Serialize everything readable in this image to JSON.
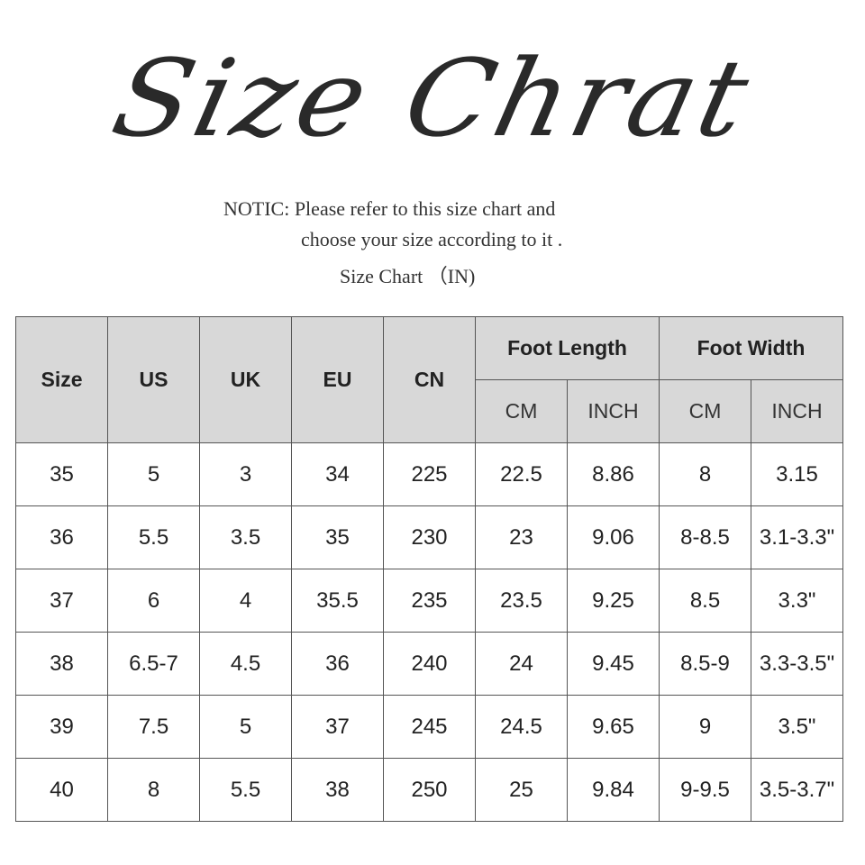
{
  "title": "Size Chrat",
  "notice": {
    "line1": "NOTIC: Please refer to this size chart and",
    "line2": "choose your size according to it .",
    "line3": "Size Chart （IN)"
  },
  "table": {
    "headers": {
      "size": "Size",
      "us": "US",
      "uk": "UK",
      "eu": "EU",
      "cn": "CN",
      "foot_length": "Foot Length",
      "foot_width": "Foot Width",
      "cm": "CM",
      "inch": "INCH"
    },
    "rows": [
      [
        "35",
        "5",
        "3",
        "34",
        "225",
        "22.5",
        "8.86",
        "8",
        "3.15"
      ],
      [
        "36",
        "5.5",
        "3.5",
        "35",
        "230",
        "23",
        "9.06",
        "8-8.5",
        "3.1-3.3\""
      ],
      [
        "37",
        "6",
        "4",
        "35.5",
        "235",
        "23.5",
        "9.25",
        "8.5",
        "3.3\""
      ],
      [
        "38",
        "6.5-7",
        "4.5",
        "36",
        "240",
        "24",
        "9.45",
        "8.5-9",
        "3.3-3.5\""
      ],
      [
        "39",
        "7.5",
        "5",
        "37",
        "245",
        "24.5",
        "9.65",
        "9",
        "3.5\""
      ],
      [
        "40",
        "8",
        "5.5",
        "38",
        "250",
        "25",
        "9.84",
        "9-9.5",
        "3.5-3.7\""
      ]
    ]
  },
  "colors": {
    "header_bg": "#d8d8d8",
    "border": "#555555"
  }
}
